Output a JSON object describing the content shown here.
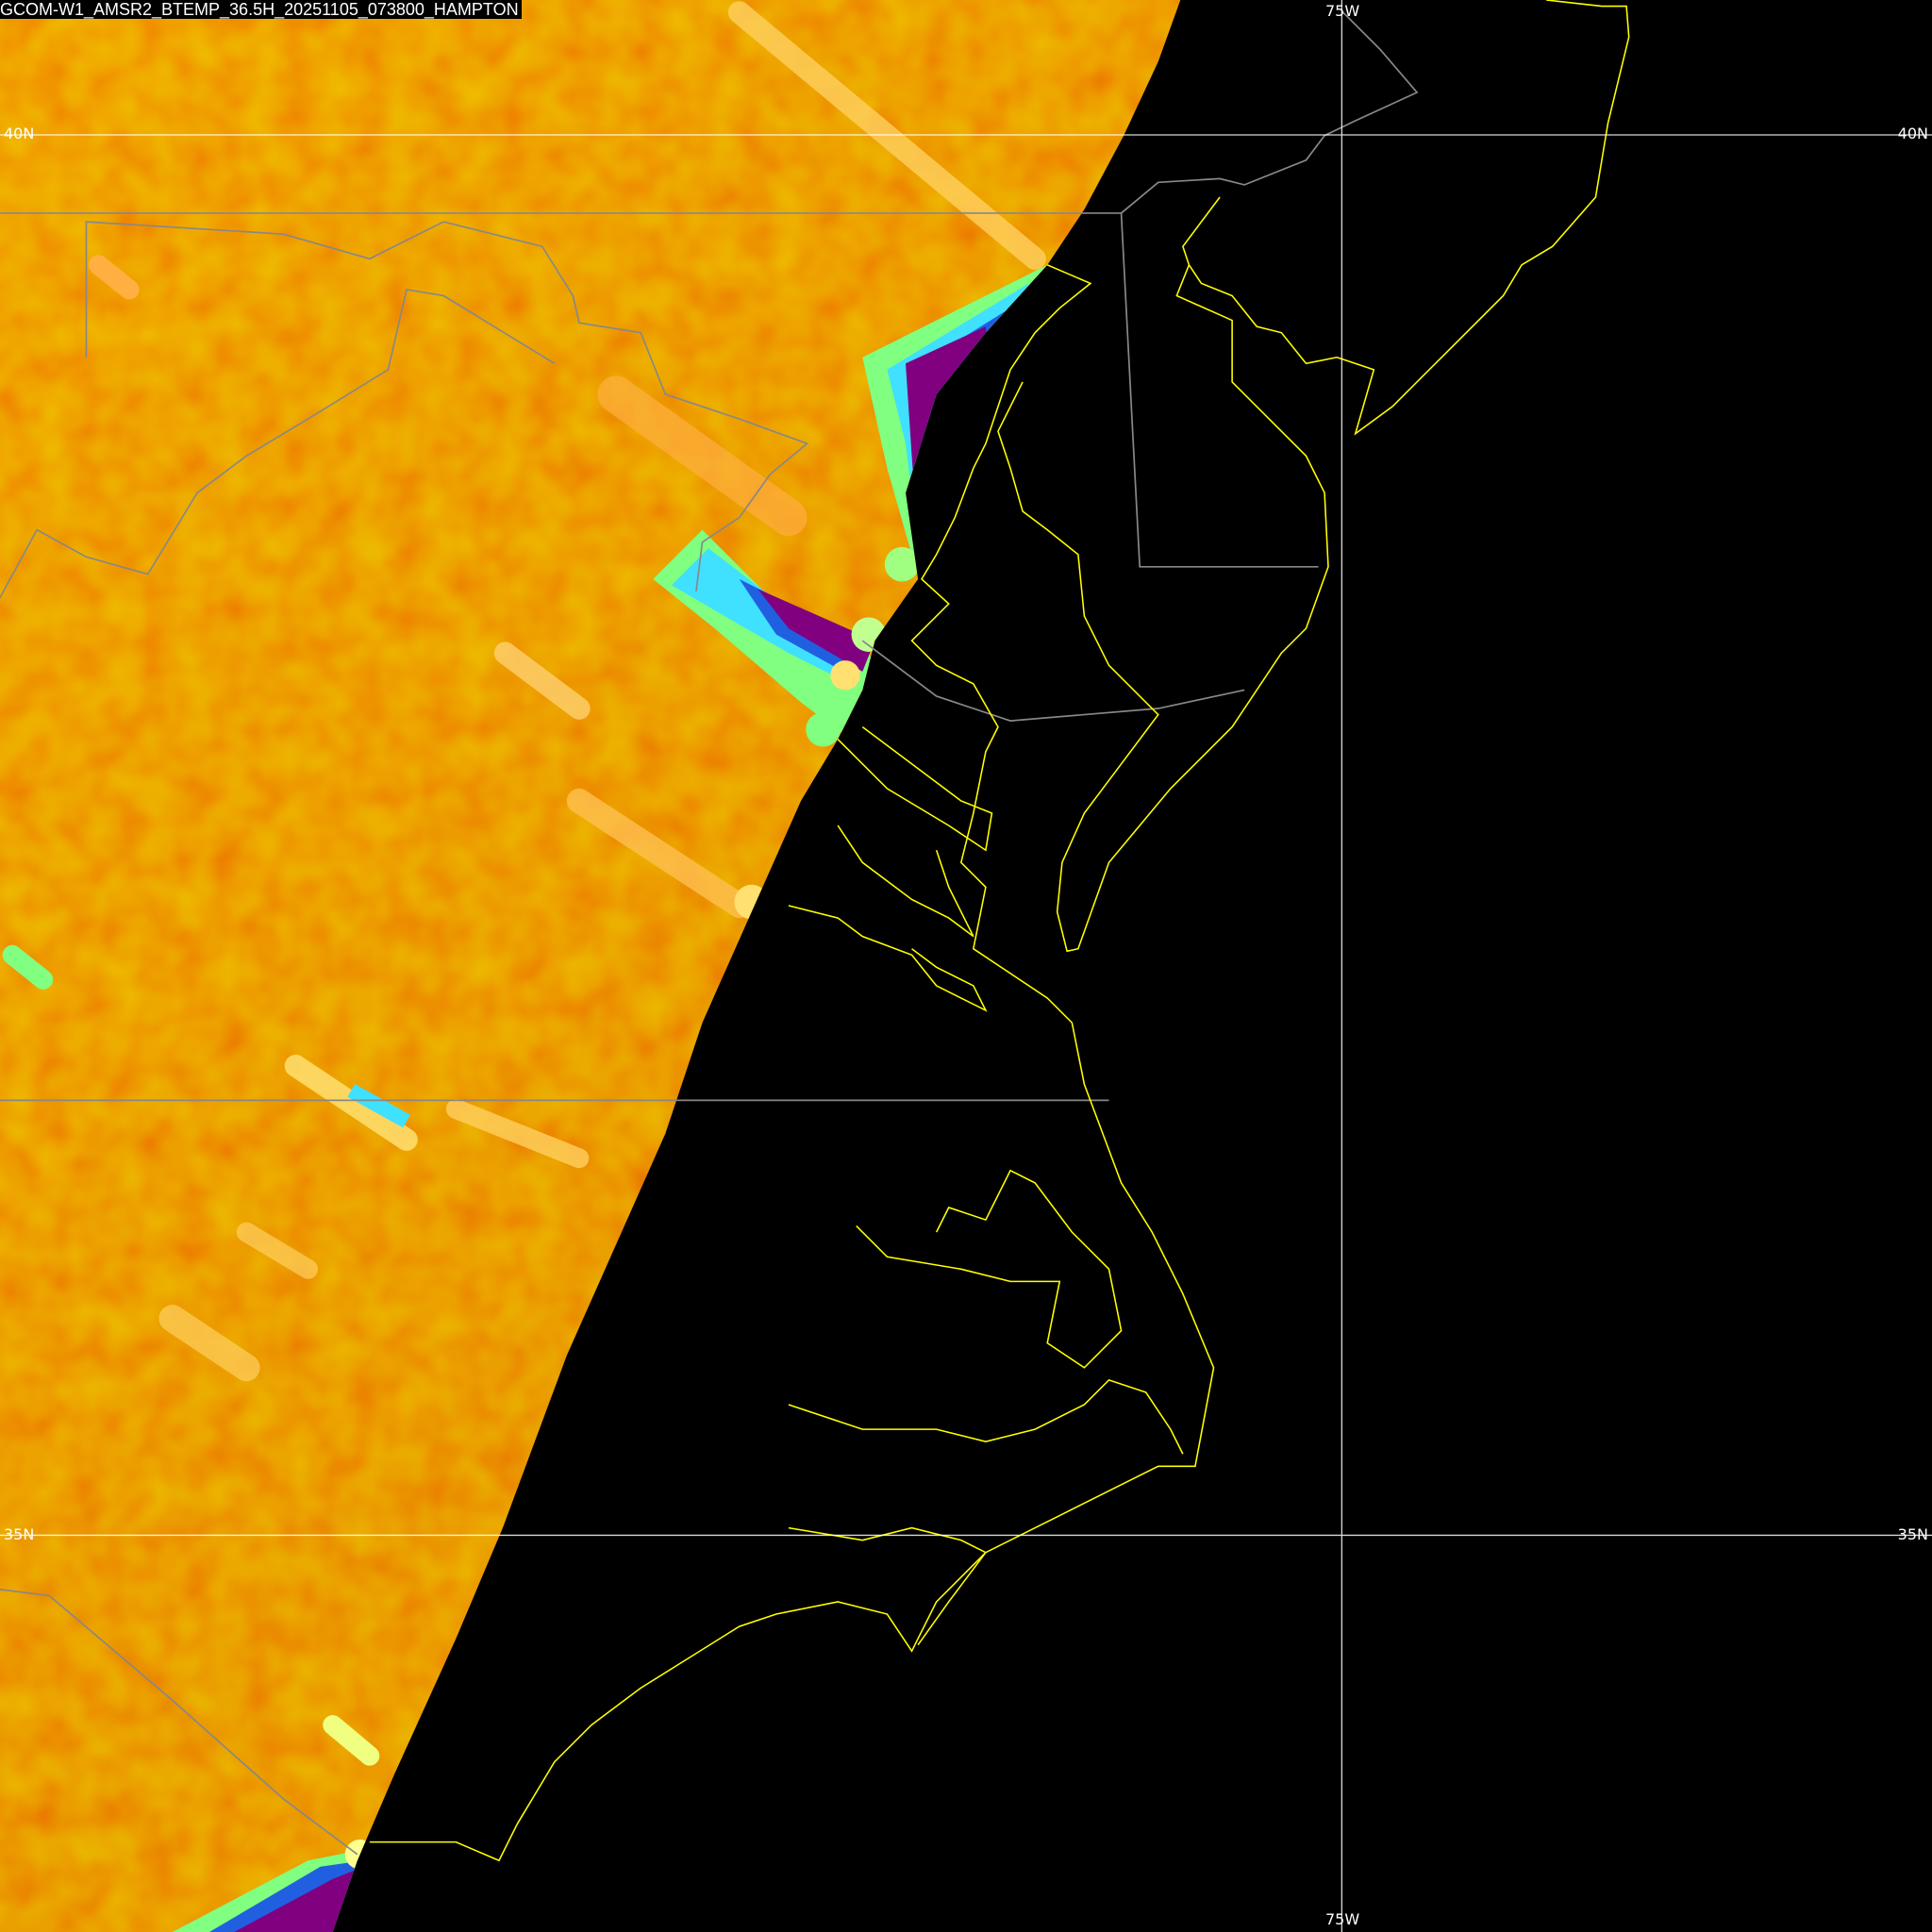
{
  "title": "GCOM-W1_AMSR2_BTEMP_36.5H_20251105_073800_HAMPTON",
  "grid_labels": {
    "lat_40_left": "40N",
    "lat_40_right": "40N",
    "lat_35_left": "35N",
    "lat_35_right": "35N",
    "lon_75_top": "75W",
    "lon_75_bottom": "75W"
  },
  "colors": {
    "background": "#000000",
    "gridline": "#ffffff",
    "coastline": "#ffff00",
    "political_boundary": "#888888",
    "swath_warm": "#e06000",
    "swath_hot": "#ffe070",
    "swath_mid": "#80ff80",
    "swath_cool": "#40e0ff",
    "swath_cold": "#2060e0",
    "swath_coldest": "#800080"
  }
}
